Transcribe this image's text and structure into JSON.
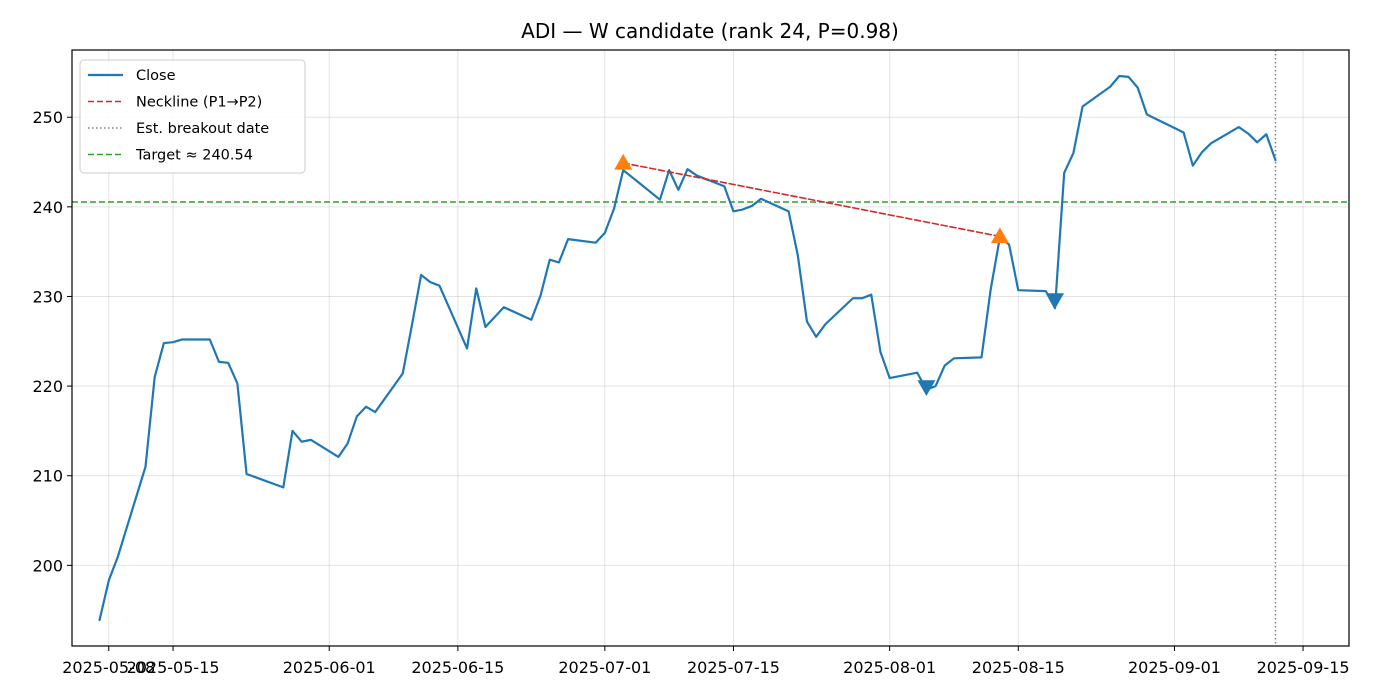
{
  "chart_data": {
    "type": "line",
    "title": "ADI — W candidate (rank 24, P=0.98)",
    "xlabel": "",
    "ylabel": "",
    "xlim": [
      "2025-05-04",
      "2025-09-20"
    ],
    "ylim": [
      191,
      257.5
    ],
    "grid": true,
    "legend_position": "top-left",
    "x_ticks": [
      "2025-05-08",
      "2025-05-15",
      "2025-06-01",
      "2025-06-15",
      "2025-07-01",
      "2025-07-15",
      "2025-08-01",
      "2025-08-15",
      "2025-09-01",
      "2025-09-15"
    ],
    "x_tick_labels": [
      "2025-05-08",
      "2025-05-15",
      "2025-06-01",
      "2025-06-15",
      "2025-07-01",
      "2025-07-15",
      "2025-08-01",
      "2025-08-15",
      "2025-09-01",
      "2025-09-15"
    ],
    "y_ticks": [
      200,
      210,
      220,
      230,
      240,
      250
    ],
    "y_tick_labels": [
      "200",
      "210",
      "220",
      "230",
      "240",
      "250"
    ],
    "series": [
      {
        "name": "Close",
        "color": "#1f77b4",
        "style": "solid",
        "points": [
          [
            "2025-05-07",
            193.9
          ],
          [
            "2025-05-08",
            198.3
          ],
          [
            "2025-05-09",
            201.0
          ],
          [
            "2025-05-12",
            211.0
          ],
          [
            "2025-05-13",
            221.0
          ],
          [
            "2025-05-14",
            224.8
          ],
          [
            "2025-05-15",
            224.9
          ],
          [
            "2025-05-16",
            225.2
          ],
          [
            "2025-05-19",
            225.2
          ],
          [
            "2025-05-20",
            222.7
          ],
          [
            "2025-05-21",
            222.6
          ],
          [
            "2025-05-22",
            220.3
          ],
          [
            "2025-05-23",
            210.2
          ],
          [
            "2025-05-27",
            208.7
          ],
          [
            "2025-05-28",
            215.0
          ],
          [
            "2025-05-29",
            213.8
          ],
          [
            "2025-05-30",
            214.0
          ],
          [
            "2025-06-02",
            212.1
          ],
          [
            "2025-06-03",
            213.6
          ],
          [
            "2025-06-04",
            216.6
          ],
          [
            "2025-06-05",
            217.7
          ],
          [
            "2025-06-06",
            217.1
          ],
          [
            "2025-06-09",
            221.4
          ],
          [
            "2025-06-10",
            226.8
          ],
          [
            "2025-06-11",
            232.4
          ],
          [
            "2025-06-12",
            231.6
          ],
          [
            "2025-06-13",
            231.2
          ],
          [
            "2025-06-16",
            224.2
          ],
          [
            "2025-06-17",
            230.9
          ],
          [
            "2025-06-18",
            226.6
          ],
          [
            "2025-06-20",
            228.8
          ],
          [
            "2025-06-23",
            227.4
          ],
          [
            "2025-06-24",
            230.1
          ],
          [
            "2025-06-25",
            234.1
          ],
          [
            "2025-06-26",
            233.8
          ],
          [
            "2025-06-27",
            236.4
          ],
          [
            "2025-06-30",
            236.0
          ],
          [
            "2025-07-01",
            237.1
          ],
          [
            "2025-07-02",
            239.8
          ],
          [
            "2025-07-03",
            244.1
          ],
          [
            "2025-07-07",
            240.8
          ],
          [
            "2025-07-08",
            244.1
          ],
          [
            "2025-07-09",
            241.9
          ],
          [
            "2025-07-10",
            244.2
          ],
          [
            "2025-07-11",
            243.5
          ],
          [
            "2025-07-14",
            242.3
          ],
          [
            "2025-07-15",
            239.5
          ],
          [
            "2025-07-16",
            239.7
          ],
          [
            "2025-07-17",
            240.1
          ],
          [
            "2025-07-18",
            240.9
          ],
          [
            "2025-07-21",
            239.5
          ],
          [
            "2025-07-22",
            234.6
          ],
          [
            "2025-07-23",
            227.2
          ],
          [
            "2025-07-24",
            225.5
          ],
          [
            "2025-07-25",
            226.9
          ],
          [
            "2025-07-28",
            229.8
          ],
          [
            "2025-07-29",
            229.8
          ],
          [
            "2025-07-30",
            230.2
          ],
          [
            "2025-07-31",
            223.8
          ],
          [
            "2025-08-01",
            220.9
          ],
          [
            "2025-08-04",
            221.5
          ],
          [
            "2025-08-05",
            219.6
          ],
          [
            "2025-08-06",
            220.0
          ],
          [
            "2025-08-07",
            222.3
          ],
          [
            "2025-08-08",
            223.1
          ],
          [
            "2025-08-11",
            223.2
          ],
          [
            "2025-08-12",
            230.8
          ],
          [
            "2025-08-13",
            236.6
          ],
          [
            "2025-08-14",
            235.8
          ],
          [
            "2025-08-15",
            230.7
          ],
          [
            "2025-08-18",
            230.6
          ],
          [
            "2025-08-19",
            228.7
          ],
          [
            "2025-08-20",
            243.8
          ],
          [
            "2025-08-21",
            246.0
          ],
          [
            "2025-08-22",
            251.2
          ],
          [
            "2025-08-25",
            253.4
          ],
          [
            "2025-08-26",
            254.6
          ],
          [
            "2025-08-27",
            254.5
          ],
          [
            "2025-08-28",
            253.3
          ],
          [
            "2025-08-29",
            250.3
          ],
          [
            "2025-09-02",
            248.3
          ],
          [
            "2025-09-03",
            244.6
          ],
          [
            "2025-09-04",
            246.1
          ],
          [
            "2025-09-05",
            247.1
          ],
          [
            "2025-09-08",
            248.9
          ],
          [
            "2025-09-09",
            248.2
          ],
          [
            "2025-09-10",
            247.2
          ],
          [
            "2025-09-11",
            248.1
          ],
          [
            "2025-09-12",
            245.2
          ]
        ]
      },
      {
        "name": "Neckline (P1→P2)",
        "color": "#d62728",
        "style": "dashed",
        "points": [
          [
            "2025-07-03",
            244.9
          ],
          [
            "2025-08-13",
            236.7
          ]
        ]
      }
    ],
    "vertical_lines": [
      {
        "name": "Est. breakout date",
        "x": "2025-09-12",
        "color": "#808080",
        "style": "dotted"
      }
    ],
    "horizontal_lines": [
      {
        "name": "Target ≈ 240.54",
        "y": 240.54,
        "color": "#2ca02c",
        "style": "dashed"
      }
    ],
    "markers": [
      {
        "kind": "peak",
        "x": "2025-07-03",
        "y": 244.9,
        "shape": "triangle-up",
        "color": "#ff7f0e"
      },
      {
        "kind": "peak",
        "x": "2025-08-13",
        "y": 236.7,
        "shape": "triangle-up",
        "color": "#ff7f0e"
      },
      {
        "kind": "trough",
        "x": "2025-08-05",
        "y": 219.9,
        "shape": "triangle-down",
        "color": "#1f77b4"
      },
      {
        "kind": "trough",
        "x": "2025-08-19",
        "y": 229.6,
        "shape": "triangle-down",
        "color": "#1f77b4"
      }
    ],
    "legend": [
      {
        "label": "Close",
        "color": "#1f77b4",
        "style": "solid"
      },
      {
        "label": "Neckline (P1→P2)",
        "color": "#d62728",
        "style": "dashed"
      },
      {
        "label": "Est. breakout date",
        "color": "#808080",
        "style": "dotted"
      },
      {
        "label": "Target ≈ 240.54",
        "color": "#2ca02c",
        "style": "dashed"
      }
    ]
  }
}
